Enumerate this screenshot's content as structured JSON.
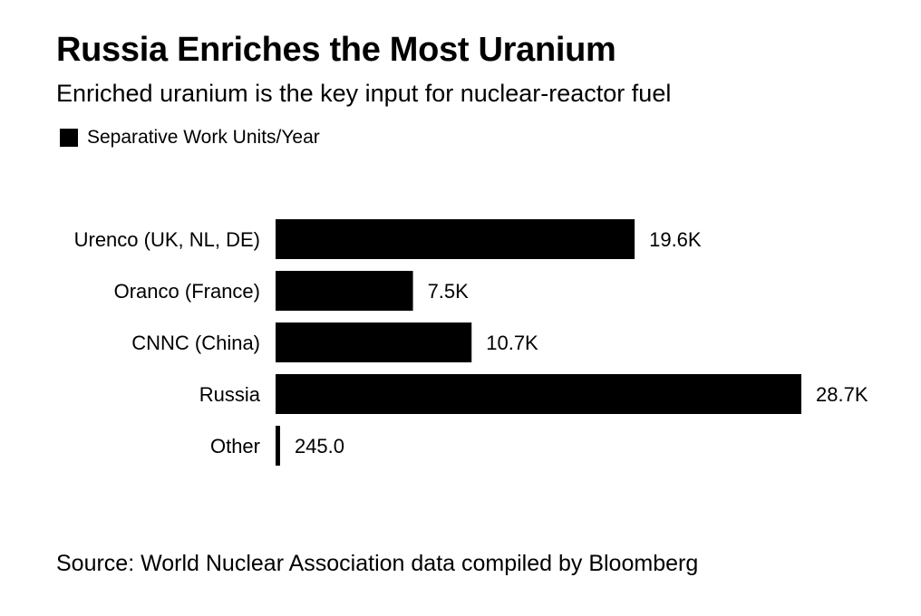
{
  "title": "Russia Enriches the Most Uranium",
  "subtitle": "Enriched uranium is the key input for nuclear-reactor fuel",
  "legend": {
    "label": "Separative Work Units/Year",
    "color": "#000000"
  },
  "source": "Source: World Nuclear Association data compiled by Bloomberg",
  "chart_data": {
    "type": "bar",
    "orientation": "horizontal",
    "categories": [
      "Urenco (UK, NL, DE)",
      "Oranco (France)",
      "CNNC (China)",
      "Russia",
      "Other"
    ],
    "series": [
      {
        "name": "Separative Work Units/Year",
        "values": [
          19600,
          7500,
          10700,
          28700,
          245
        ],
        "labels": [
          "19.6K",
          "7.5K",
          "10.7K",
          "28.7K",
          "245.0"
        ],
        "color": "#000000"
      }
    ],
    "xlim": [
      0,
      28700
    ],
    "grid": false,
    "legend_position": "top-left"
  }
}
